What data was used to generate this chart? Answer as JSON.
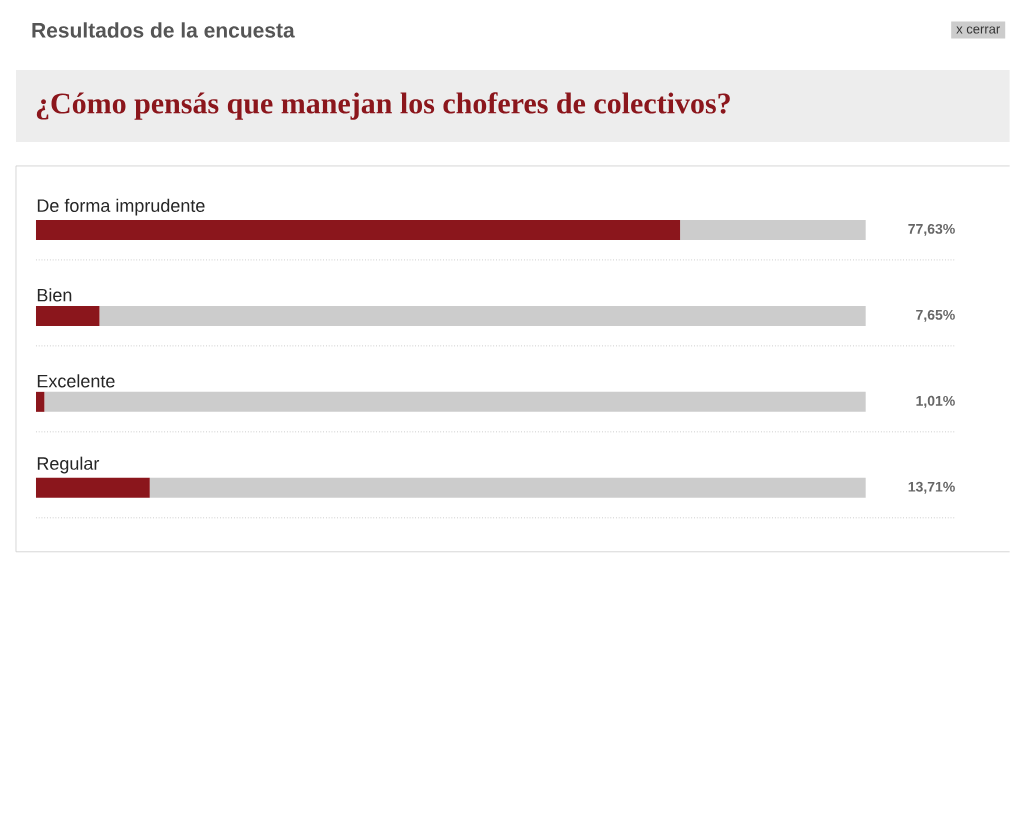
{
  "chart_data": {
    "type": "bar",
    "orientation": "horizontal",
    "stacked": true,
    "title": "Resultados de la encuesta",
    "subtitle": "¿Cómo pensás que manejan los choferes de colectivos?",
    "annotations": [
      "x cerrar"
    ],
    "categories": [
      "De forma imprudente",
      "Bien",
      "Excelente",
      "Regular"
    ],
    "series": [
      {
        "color": "#8b161c",
        "values": [
          77.63,
          7.65,
          1.01,
          13.71
        ],
        "value_labels": [
          "77,63%",
          "7,65%",
          "1,01%",
          "13,71%"
        ]
      },
      {
        "color": "#cccccc",
        "values": [
          22.37,
          92.35,
          98.99,
          86.29
        ]
      }
    ],
    "xlim": [
      0,
      100
    ]
  }
}
